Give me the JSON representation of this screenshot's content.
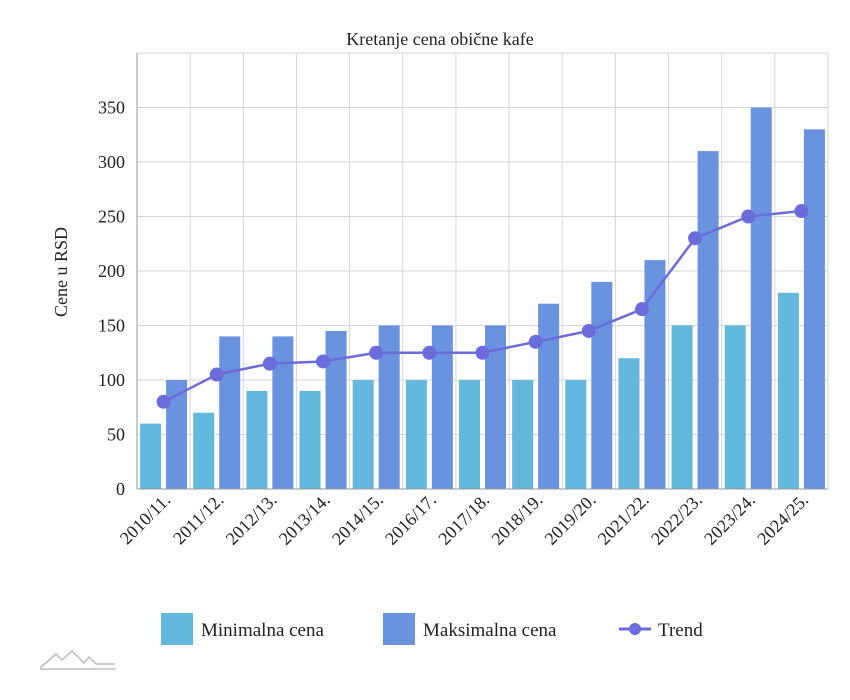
{
  "chart_data": {
    "type": "bar",
    "title": "Kretanje cena obične kafe",
    "xlabel": "",
    "ylabel": "Cene u RSD",
    "ylim": [
      0,
      400
    ],
    "yticks": [
      0,
      50,
      100,
      150,
      200,
      250,
      300,
      350
    ],
    "grid": true,
    "legend_position": "bottom",
    "categories": [
      "2010/11.",
      "2011/12.",
      "2012/13.",
      "2013/14.",
      "2014/15.",
      "2016/17.",
      "2017/18.",
      "2018/19.",
      "2019/20.",
      "2021/22.",
      "2022/23.",
      "2023/24.",
      "2024/25."
    ],
    "series": [
      {
        "name": "Minimalna cena",
        "type": "bar",
        "color": "#63b8de",
        "values": [
          60,
          70,
          90,
          90,
          100,
          100,
          100,
          100,
          100,
          120,
          150,
          150,
          180
        ]
      },
      {
        "name": "Maksimalna cena",
        "type": "bar",
        "color": "#6992df",
        "values": [
          100,
          140,
          140,
          145,
          150,
          150,
          150,
          170,
          190,
          210,
          310,
          350,
          330
        ]
      },
      {
        "name": "Trend",
        "type": "line",
        "color": "#6b6bdc",
        "values": [
          80,
          105,
          115,
          117,
          125,
          125,
          125,
          135,
          145,
          165,
          230,
          250,
          255
        ]
      }
    ]
  },
  "colors": {
    "grid": "#d6d6d6",
    "axis": "#999999",
    "text": "#222222"
  },
  "icons": {
    "watermark": "mountain-logo-icon"
  }
}
